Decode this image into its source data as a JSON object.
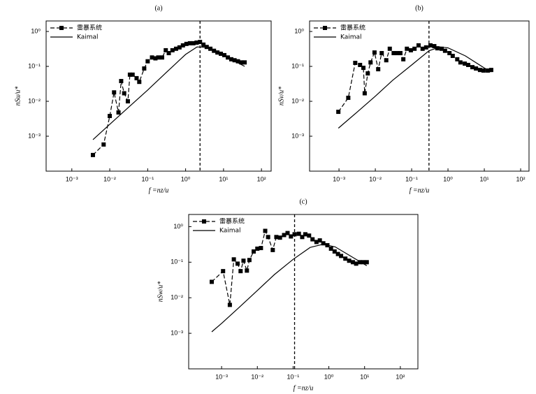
{
  "chart_data": [
    {
      "type": "line",
      "title": "(a)",
      "xlabel": "f =nz/u",
      "ylabel": "nSu/u*",
      "xscale": "log",
      "yscale": "log",
      "xlim": [
        0.00021,
        180
      ],
      "ylim": [
        0.0001,
        2
      ],
      "xticks": [
        {
          "value": 0.001,
          "label": "10⁻³"
        },
        {
          "value": 0.01,
          "label": "10⁻²"
        },
        {
          "value": 0.1,
          "label": "10⁻¹"
        },
        {
          "value": 1,
          "label": "10⁰"
        },
        {
          "value": 10,
          "label": "10¹"
        },
        {
          "value": 100,
          "label": "10²"
        }
      ],
      "yticks": [
        {
          "value": 0.001,
          "label": "10⁻³"
        },
        {
          "value": 0.01,
          "label": "10⁻²"
        },
        {
          "value": 0.1,
          "label": "10⁻¹"
        },
        {
          "value": 1,
          "label": "10⁰"
        }
      ],
      "vline": 2.4,
      "legend": "upper left",
      "series": [
        {
          "name": "雷暴系统",
          "color": "#000000",
          "linestyle": "dashed",
          "marker": "square",
          "x": [
            0.0036,
            0.0069,
            0.01,
            0.013,
            0.017,
            0.02,
            0.024,
            0.03,
            0.034,
            0.04,
            0.051,
            0.06,
            0.081,
            0.1,
            0.13,
            0.16,
            0.19,
            0.24,
            0.3,
            0.36,
            0.45,
            0.56,
            0.69,
            0.85,
            1.05,
            1.3,
            1.6,
            1.95,
            2.4,
            2.95,
            3.6,
            4.5,
            5.6,
            6.9,
            8.5,
            10.5,
            13,
            16,
            19.5,
            24,
            29.5,
            36
          ],
          "values": [
            0.00029,
            0.00058,
            0.0038,
            0.018,
            0.0048,
            0.038,
            0.017,
            0.01,
            0.058,
            0.058,
            0.046,
            0.036,
            0.087,
            0.14,
            0.18,
            0.17,
            0.18,
            0.18,
            0.29,
            0.24,
            0.29,
            0.32,
            0.35,
            0.4,
            0.44,
            0.46,
            0.46,
            0.48,
            0.5,
            0.42,
            0.36,
            0.32,
            0.28,
            0.25,
            0.23,
            0.21,
            0.18,
            0.16,
            0.15,
            0.14,
            0.13,
            0.13
          ]
        },
        {
          "name": "Kaimal",
          "color": "#000000",
          "linestyle": "solid",
          "marker": "none",
          "x": [
            0.0036,
            0.01,
            0.03,
            0.1,
            0.3,
            1,
            2,
            4,
            10,
            20,
            36
          ],
          "values": [
            0.0008,
            0.0022,
            0.0065,
            0.021,
            0.065,
            0.22,
            0.36,
            0.35,
            0.22,
            0.14,
            0.1
          ]
        }
      ]
    },
    {
      "type": "line",
      "title": "(b)",
      "xlabel": "f =nz/u",
      "ylabel": "nSv/u*",
      "xscale": "log",
      "yscale": "log",
      "xlim": [
        0.000155,
        170
      ],
      "ylim": [
        0.0001,
        2
      ],
      "xticks": [
        {
          "value": 0.001,
          "label": "10⁻³"
        },
        {
          "value": 0.01,
          "label": "10⁻²"
        },
        {
          "value": 0.1,
          "label": "10⁻¹"
        },
        {
          "value": 1,
          "label": "10⁰"
        },
        {
          "value": 10,
          "label": "10¹"
        },
        {
          "value": 100,
          "label": "10²"
        }
      ],
      "yticks": [
        {
          "value": 0.001,
          "label": "10⁻³"
        },
        {
          "value": 0.01,
          "label": "10⁻²"
        },
        {
          "value": 0.1,
          "label": "10⁻¹"
        },
        {
          "value": 1,
          "label": "10⁰"
        }
      ],
      "vline": 0.3,
      "legend": "upper left",
      "series": [
        {
          "name": "雷暴系统",
          "color": "#000000",
          "linestyle": "dashed",
          "marker": "square",
          "x": [
            0.00096,
            0.0018,
            0.0028,
            0.0038,
            0.0047,
            0.0051,
            0.0062,
            0.0074,
            0.0095,
            0.012,
            0.015,
            0.02,
            0.025,
            0.032,
            0.04,
            0.049,
            0.059,
            0.074,
            0.095,
            0.12,
            0.155,
            0.2,
            0.25,
            0.33,
            0.42,
            0.51,
            0.67,
            0.83,
            1.1,
            1.35,
            1.8,
            2.2,
            2.9,
            3.6,
            4.7,
            5.9,
            7.6,
            9.5,
            12.5,
            15.5
          ],
          "values": [
            0.005,
            0.0126,
            0.126,
            0.11,
            0.091,
            0.017,
            0.063,
            0.13,
            0.25,
            0.083,
            0.24,
            0.15,
            0.32,
            0.24,
            0.24,
            0.24,
            0.16,
            0.32,
            0.29,
            0.32,
            0.4,
            0.32,
            0.35,
            0.4,
            0.38,
            0.33,
            0.32,
            0.28,
            0.24,
            0.2,
            0.16,
            0.13,
            0.12,
            0.11,
            0.095,
            0.087,
            0.079,
            0.076,
            0.076,
            0.079
          ]
        },
        {
          "name": "Kaimal",
          "color": "#000000",
          "linestyle": "solid",
          "marker": "none",
          "x": [
            0.00096,
            0.003,
            0.01,
            0.03,
            0.1,
            0.3,
            0.6,
            1,
            3,
            10,
            15.5
          ],
          "values": [
            0.0017,
            0.0047,
            0.014,
            0.04,
            0.11,
            0.28,
            0.36,
            0.34,
            0.2,
            0.09,
            0.07
          ]
        }
      ]
    },
    {
      "type": "line",
      "title": "(c)",
      "xlabel": "f =nz/u",
      "ylabel": "nSw/u*",
      "xscale": "log",
      "yscale": "log",
      "xlim": [
        0.00012,
        310
      ],
      "ylim": [
        0.0001,
        2.2
      ],
      "xticks": [
        {
          "value": 0.001,
          "label": "10⁻³"
        },
        {
          "value": 0.01,
          "label": "10⁻²"
        },
        {
          "value": 0.1,
          "label": "10⁻¹"
        },
        {
          "value": 1,
          "label": "10⁰"
        },
        {
          "value": 10,
          "label": "10¹"
        },
        {
          "value": 100,
          "label": "10²"
        }
      ],
      "yticks": [
        {
          "value": 0.001,
          "label": "10⁻³"
        },
        {
          "value": 0.01,
          "label": "10⁻²"
        },
        {
          "value": 0.1,
          "label": "10⁻¹"
        },
        {
          "value": 1,
          "label": "10⁰"
        }
      ],
      "vline": 0.11,
      "legend": "upper left",
      "series": [
        {
          "name": "雷暴系统",
          "color": "#000000",
          "linestyle": "dashed",
          "marker": "square",
          "x": [
            0.00053,
            0.0011,
            0.0017,
            0.0022,
            0.0028,
            0.0034,
            0.0041,
            0.0051,
            0.006,
            0.0079,
            0.01,
            0.0126,
            0.0166,
            0.02,
            0.027,
            0.034,
            0.043,
            0.056,
            0.07,
            0.087,
            0.11,
            0.145,
            0.18,
            0.22,
            0.28,
            0.35,
            0.45,
            0.56,
            0.7,
            0.91,
            1.15,
            1.45,
            1.8,
            2.2,
            2.9,
            3.7,
            4.7,
            5.8,
            7.3,
            9.1,
            11.5
          ],
          "values": [
            0.028,
            0.056,
            0.0063,
            0.12,
            0.091,
            0.056,
            0.11,
            0.058,
            0.115,
            0.2,
            0.24,
            0.25,
            0.76,
            0.51,
            0.22,
            0.51,
            0.49,
            0.58,
            0.66,
            0.53,
            0.61,
            0.63,
            0.51,
            0.61,
            0.56,
            0.44,
            0.37,
            0.41,
            0.34,
            0.3,
            0.24,
            0.2,
            0.17,
            0.15,
            0.126,
            0.11,
            0.1,
            0.091,
            0.1,
            0.1,
            0.1
          ]
        },
        {
          "name": "Kaimal",
          "color": "#000000",
          "linestyle": "solid",
          "marker": "none",
          "x": [
            0.00053,
            0.001,
            0.003,
            0.01,
            0.03,
            0.1,
            0.3,
            0.7,
            1.5,
            4,
            11.5
          ],
          "values": [
            0.0011,
            0.0019,
            0.0052,
            0.016,
            0.045,
            0.12,
            0.26,
            0.32,
            0.27,
            0.15,
            0.08
          ]
        }
      ]
    }
  ]
}
